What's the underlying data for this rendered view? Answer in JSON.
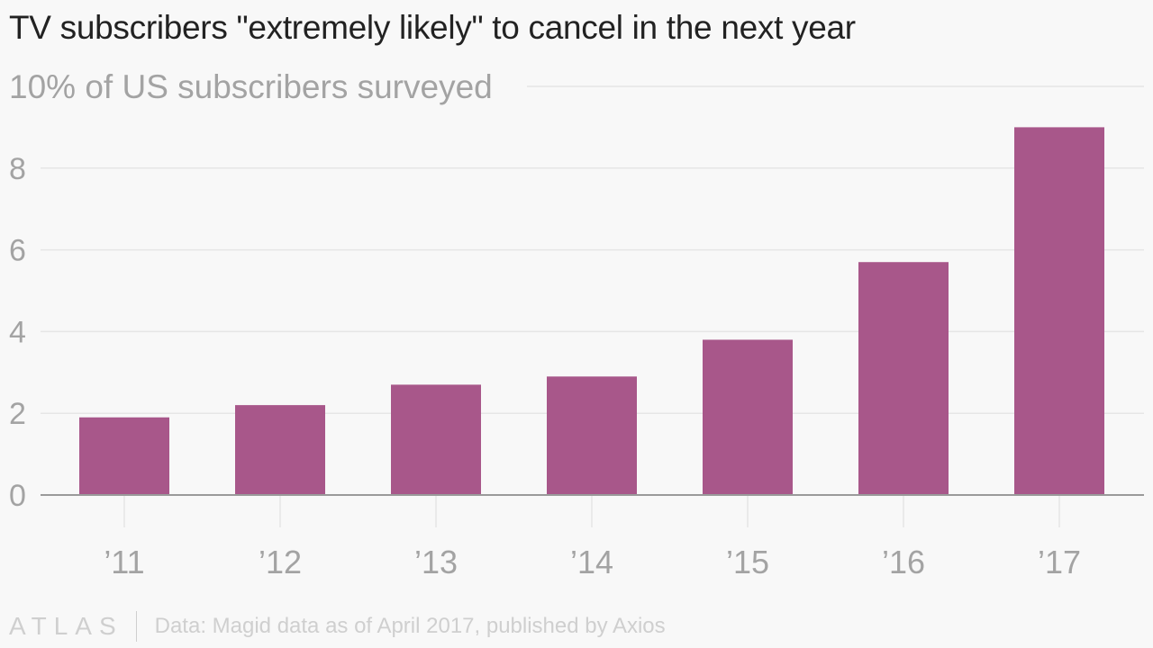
{
  "chart_data": {
    "type": "bar",
    "title": "TV subscribers \"extremely likely\" to cancel in the next year",
    "subtitle": "10% of US subscribers surveyed",
    "categories": [
      "’11",
      "’12",
      "’13",
      "’14",
      "’15",
      "’16",
      "’17"
    ],
    "values": [
      1.9,
      2.2,
      2.7,
      2.9,
      3.8,
      5.7,
      9.0
    ],
    "yticks": [
      0,
      2,
      4,
      6,
      8
    ],
    "ylim": [
      0,
      10
    ],
    "grid": true,
    "xlabel": "",
    "ylabel": "",
    "bar_color": "#a8578a"
  },
  "footer": {
    "logo": "ATLAS",
    "source": "Data: Magid data as of April 2017, published by Axios"
  }
}
